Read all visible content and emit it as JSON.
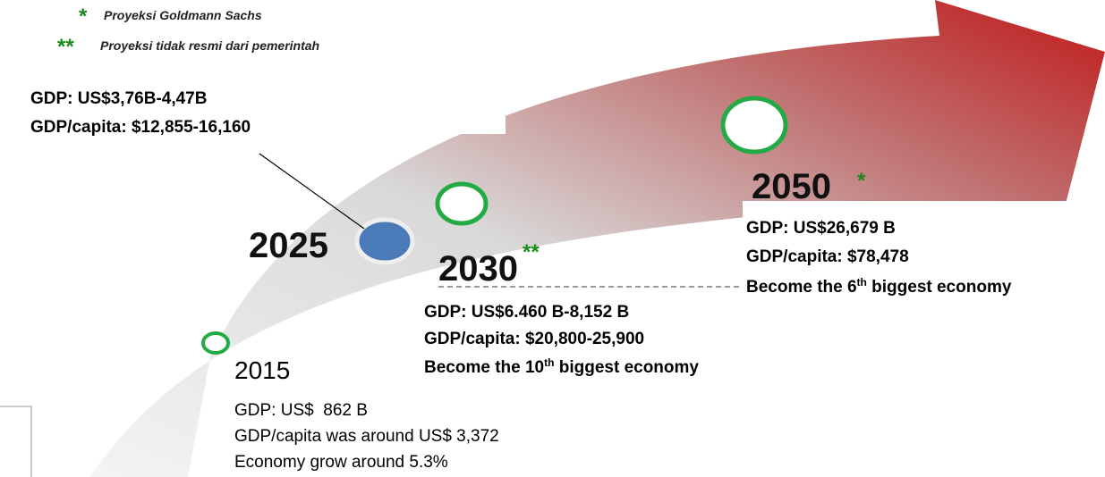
{
  "legend": [
    {
      "mark": "*",
      "text": "Proyeksi Goldmann Sachs"
    },
    {
      "mark": "**",
      "text": "Proyeksi tidak resmi dari pemerintah"
    }
  ],
  "milestones": [
    {
      "year": "2015",
      "lines": [
        "GDP: US$  862 B",
        "GDP/capita was around US$ 3,372",
        "Economy grow around 5.3%"
      ]
    },
    {
      "year": "2025",
      "lines": [
        "GDP: US$3,76B-4,47B",
        "GDP/capita: $12,855-16,160"
      ]
    },
    {
      "year": "2030",
      "mark": "**",
      "lines": [
        "GDP: US$6.460 B-8,152 B",
        "GDP/capita: $20,800-25,900"
      ],
      "rank": {
        "text": "Become the 10",
        "sup": "th",
        "rest": " biggest economy"
      }
    },
    {
      "year": "2050",
      "mark": "*",
      "lines": [
        "GDP: US$26,679 B",
        "GDP/capita: $78,478"
      ],
      "rank": {
        "text": "Become the 6",
        "sup": "th",
        "rest": " biggest economy"
      }
    }
  ]
}
